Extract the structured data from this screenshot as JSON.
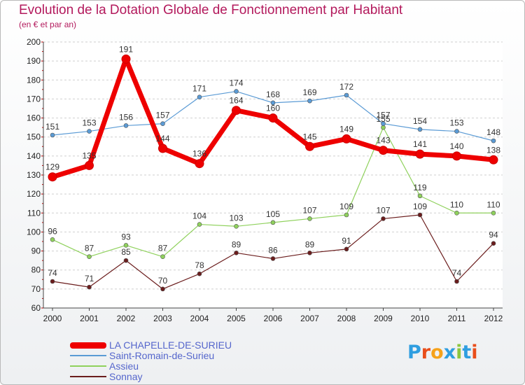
{
  "title": "Evolution de la Dotation Globale de Fonctionnement par Habitant",
  "subtitle": "(en € et par an)",
  "logo_text": "Proxiti",
  "logo_colors": [
    "#2f9ee0",
    "#e94e1b",
    "#f6a21a",
    "#2f9ee0",
    "#8cc63f",
    "#2f9ee0",
    "#e94e1b"
  ],
  "chart_data": {
    "type": "line",
    "title": "Evolution de la Dotation Globale de Fonctionnement par Habitant",
    "subtitle": "(en € et par an)",
    "x": [
      "2000",
      "2001",
      "2002",
      "2003",
      "2004",
      "2005",
      "2006",
      "2007",
      "2008",
      "2009",
      "2010",
      "2011",
      "2012"
    ],
    "ylim": [
      60,
      200
    ],
    "yticks": [
      60,
      70,
      80,
      90,
      100,
      110,
      120,
      130,
      140,
      150,
      160,
      170,
      180,
      190,
      200
    ],
    "grid": "horizontal dashed",
    "legend_position": "bottom-left",
    "series": [
      {
        "name": "LA CHAPELLE-DE-SURIEU",
        "color": "#ee0000",
        "width": 7,
        "values": [
          129,
          135,
          191,
          144,
          136,
          164,
          160,
          145,
          149,
          143,
          141,
          140,
          138
        ]
      },
      {
        "name": "Saint-Romain-de-Surieu",
        "color": "#5b9bd5",
        "width": 1.2,
        "values": [
          151,
          153,
          156,
          157,
          171,
          174,
          168,
          169,
          172,
          157,
          154,
          153,
          148
        ]
      },
      {
        "name": "Assieu",
        "color": "#8fd15c",
        "width": 1.2,
        "values": [
          96,
          87,
          93,
          87,
          104,
          103,
          105,
          107,
          109,
          155,
          119,
          110,
          110
        ]
      },
      {
        "name": "Sonnay",
        "color": "#6b1d1d",
        "width": 1.2,
        "values": [
          74,
          71,
          85,
          70,
          78,
          89,
          86,
          89,
          91,
          107,
          109,
          74,
          94
        ]
      }
    ]
  }
}
